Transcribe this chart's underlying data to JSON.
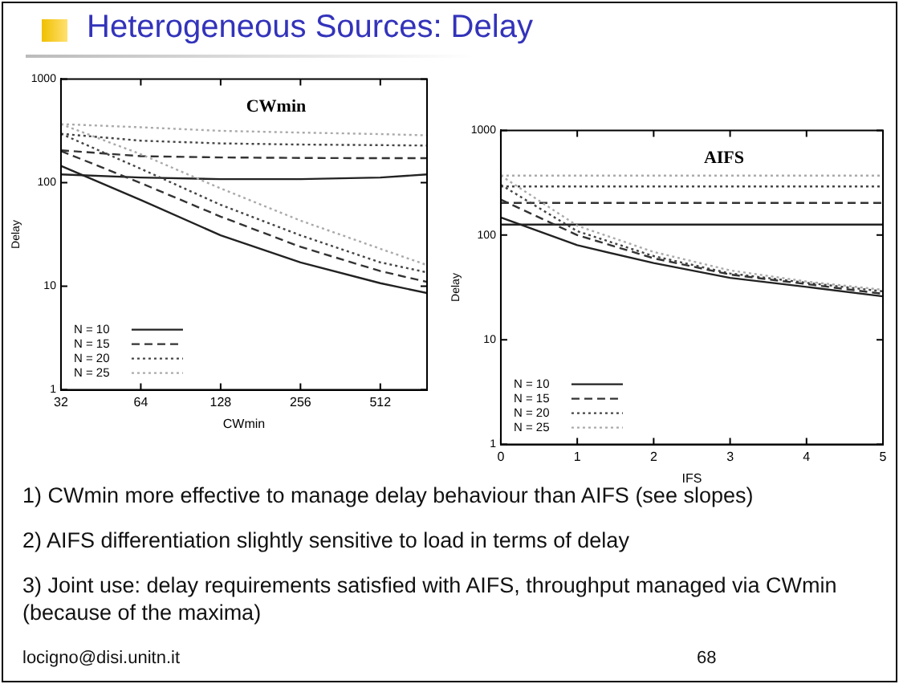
{
  "chart_data": [
    {
      "type": "other",
      "title": "Heterogeneous Sources: Delay"
    },
    {
      "type": "line",
      "title": "CWmin",
      "xlabel": "CWmin",
      "ylabel": "Delay",
      "log": "xy",
      "x": [
        32,
        64,
        128,
        256,
        512,
        768
      ],
      "xlim": [
        32,
        768
      ],
      "xticks": [
        32,
        64,
        128,
        256,
        512
      ],
      "ylim": [
        1,
        1000
      ],
      "yticks": [
        1,
        10,
        100,
        1000
      ],
      "grid": false,
      "legend": "bottom left",
      "marker": "none",
      "series": [
        {
          "name": "N = 10",
          "color": "#222222",
          "line_style": "solid",
          "values": [
            145,
            68,
            31,
            17,
            10.7,
            8.6
          ]
        },
        {
          "name": "N = 15",
          "color": "#333333",
          "line_style": "dashed",
          "values": [
            202,
            99,
            47,
            24,
            14,
            11
          ]
        },
        {
          "name": "N = 20",
          "color": "#444444",
          "line_style": "dotted",
          "values": [
            296,
            136,
            61,
            31,
            17,
            13.6
          ]
        },
        {
          "name": "N = 25",
          "color": "#aaaaaa",
          "line_style": "dotted",
          "values": [
            367,
            188,
            88,
            43,
            23,
            16
          ]
        },
        {
          "color": "#222222",
          "line_style": "solid",
          "values": [
            120,
            112,
            108,
            108,
            112,
            120
          ]
        },
        {
          "color": "#333333",
          "line_style": "dashed",
          "values": [
            205,
            180,
            175,
            173,
            172,
            172
          ]
        },
        {
          "color": "#444444",
          "line_style": "dotted",
          "values": [
            296,
            254,
            239,
            233,
            230,
            228
          ]
        },
        {
          "color": "#aaaaaa",
          "line_style": "dotted",
          "values": [
            367,
            342,
            316,
            304,
            294,
            286
          ]
        }
      ]
    },
    {
      "type": "line",
      "title": "AIFS",
      "xlabel": "IFS",
      "ylabel": "Delay",
      "log": true,
      "x": [
        0,
        1,
        2,
        3,
        4,
        5
      ],
      "xlim": [
        0,
        5
      ],
      "xticks": [
        0,
        1,
        2,
        3,
        4,
        5
      ],
      "ylim": [
        1,
        1000
      ],
      "yticks": [
        1,
        10,
        100,
        1000
      ],
      "grid": false,
      "legend": "bottom left",
      "marker": "none",
      "series": [
        {
          "name": "N = 10",
          "color": "#222222",
          "line_style": "solid",
          "values": [
            147,
            80,
            54,
            39,
            32,
            26
          ]
        },
        {
          "name": "N = 15",
          "color": "#333333",
          "line_style": "dashed",
          "values": [
            218,
            100,
            60,
            42,
            34,
            27.5
          ]
        },
        {
          "name": "N = 20",
          "color": "#444444",
          "line_style": "dotted",
          "values": [
            302,
            109,
            63,
            43,
            35,
            29
          ]
        },
        {
          "name": "N = 25",
          "color": "#aaaaaa",
          "line_style": "dotted",
          "values": [
            370,
            123,
            69,
            46,
            36,
            30
          ]
        },
        {
          "color": "#222222",
          "line_style": "solid",
          "values": [
            126,
            126,
            126,
            126,
            126,
            126
          ]
        },
        {
          "color": "#333333",
          "line_style": "dashed",
          "values": [
            203,
            203,
            203,
            203,
            203,
            203
          ]
        },
        {
          "color": "#444444",
          "line_style": "dotted",
          "values": [
            291,
            291,
            291,
            291,
            291,
            291
          ]
        },
        {
          "color": "#aaaaaa",
          "line_style": "dotted",
          "values": [
            370,
            370,
            370,
            370,
            370,
            370
          ]
        }
      ]
    },
    {
      "type": "other",
      "annotations": [
        "1) CWmin more effective to manage delay behaviour than AIFS (see slopes)",
        "2) AIFS differentiation slightly sensitive to load in terms of delay",
        "3) Joint use: delay requirements satisfied with AIFS, throughput managed via CWmin (because of the maxima)",
        "locigno@disi.unitn.it",
        "68"
      ]
    }
  ]
}
